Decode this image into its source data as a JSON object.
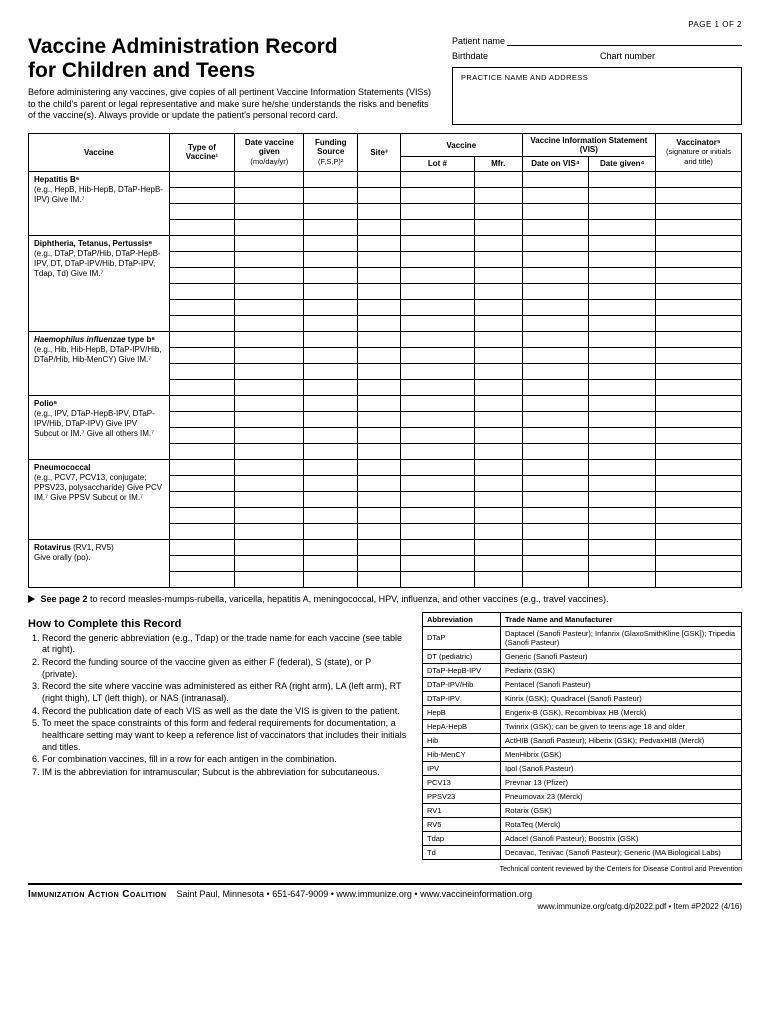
{
  "page_indicator": "PAGE 1 OF 2",
  "title_line1": "Vaccine Administration Record",
  "title_line2": "for Children and Teens",
  "intro": "Before administering any vaccines, give copies of all pertinent Vaccine Information Statements (VISs) to the child's parent or legal representative and make sure he/she understands the risks and benefits of the vaccine(s). Always provide or update the patient's personal record card.",
  "fields": {
    "patient_name": "Patient name",
    "birthdate": "Birthdate",
    "chart_number": "Chart number",
    "practice_box": "PRACTICE NAME AND ADDRESS"
  },
  "table": {
    "headers": {
      "vaccine": "Vaccine",
      "type": "Type of Vaccine¹",
      "date_given": "Date vaccine given",
      "date_given_sub": "(mo/day/yr)",
      "funding": "Funding Source",
      "funding_sub": "(F,S,P)²",
      "site": "Site³",
      "vaccine2": "Vaccine",
      "lot": "Lot #",
      "mfr": "Mfr.",
      "vis": "Vaccine Information Statement (VIS)",
      "date_vis": "Date on VIS⁴",
      "date_given2": "Date given⁴",
      "vaccinator": "Vaccinator⁵",
      "vaccinator_sub": "(signature or initials and title)"
    },
    "col_widths": {
      "vaccine": 118,
      "type": 55,
      "date": 58,
      "funding": 45,
      "site": 36,
      "lot": 62,
      "mfr": 40,
      "vis1": 56,
      "vis2": 56,
      "vacc": 72
    },
    "rows": [
      {
        "name": "Hepatitis B⁶",
        "desc": "(e.g., HepB, Hib-HepB, DTaP-HepB-IPV) Give IM.⁷",
        "blank_rows": 4
      },
      {
        "name": "Diphtheria, Tetanus, Pertussis⁶",
        "desc": "(e.g., DTaP, DTaP/Hib, DTaP-HepB-IPV, DT, DTaP-IPV/Hib, DTaP-IPV, Tdap, Td) Give IM.⁷",
        "blank_rows": 6
      },
      {
        "name_html": "Haemophilus influenzae type b⁶",
        "name_italic_part": "Haemophilus influenzae",
        "name_rest": " type b⁶",
        "desc": "(e.g., Hib, Hib-HepB, DTaP-IPV/Hib, DTaP/Hib, Hib-MenCY) Give IM.⁷",
        "blank_rows": 4
      },
      {
        "name": "Polio⁶",
        "desc": "(e.g., IPV, DTaP-HepB-IPV, DTaP-IPV/Hib, DTaP-IPV) Give IPV Subcut or IM.⁷ Give all others IM.⁷",
        "blank_rows": 4
      },
      {
        "name": "Pneumococcal",
        "desc": "(e.g., PCV7, PCV13, conjugate; PPSV23, polysaccharide) Give PCV IM.⁷ Give PPSV Subcut or IM.⁷",
        "blank_rows": 5
      },
      {
        "name": "Rotavirus",
        "name_extra": " (RV1, RV5)",
        "desc": "Give orally (po).",
        "blank_rows": 3
      }
    ]
  },
  "see_page": {
    "bold": "See page 2",
    "rest": " to record measles-mumps-rubella, varicella, hepatitis A, meningococcal, HPV, influenza, and other vaccines (e.g., travel vaccines)."
  },
  "howto_title": "How to Complete this Record",
  "howto": [
    "Record the generic abbreviation (e.g., Tdap) or the trade name for each vaccine (see table at right).",
    "Record the funding source of the vaccine given as either F (federal), S (state), or P (private).",
    "Record the site where vaccine was administered as either RA (right arm), LA (left arm), RT (right thigh), LT (left thigh), or NAS (intranasal).",
    "Record the publication date of each VIS as well as the date the VIS is given to the patient.",
    "To meet the space constraints of this form and federal requirements for documentation, a healthcare setting may want to keep a reference list of vaccinators that includes their initials and titles.",
    "For combination vaccines, fill in a row for each antigen in the combination.",
    "IM is the abbreviation for intramuscular; Subcut is the abbreviation for subcutaneous."
  ],
  "abbr_table": {
    "headers": {
      "abbr": "Abbreviation",
      "trade": "Trade Name and Manufacturer"
    },
    "rows": [
      [
        "DTaP",
        "Daptacel (Sanofi Pasteur); Infanrix (GlaxoSmithKline [GSK]); Tripedia (Sanofi Pasteur)"
      ],
      [
        "DT (pediatric)",
        "Generic (Sanofi Pasteur)"
      ],
      [
        "DTaP-HepB-IPV",
        "Pediarix (GSK)"
      ],
      [
        "DTaP-IPV/Hib",
        "Pentacel (Sanofi Pasteur)"
      ],
      [
        "DTaP-IPV",
        "Kinrix (GSK); Quadracel (Sanofi Pasteur)"
      ],
      [
        "HepB",
        "Engerix-B (GSK), Recombivax HB (Merck)"
      ],
      [
        "HepA-HepB",
        "Twinrix (GSK); can be given to teens age 18 and older"
      ],
      [
        "Hib",
        "ActHIB (Sanofi Pasteur); Hiberix (GSK); PedvaxHIB (Merck)"
      ],
      [
        "Hib-MenCY",
        "MenHibrix (GSK)"
      ],
      [
        "IPV",
        "Ipol (Sanofi Pasteur)"
      ],
      [
        "PCV13",
        "Prevnar 13 (Pfizer)"
      ],
      [
        "PPSV23",
        "Pneumovax 23 (Merck)"
      ],
      [
        "RV1",
        "Rotarix (GSK)"
      ],
      [
        "RV5",
        "RotaTeq (Merck)"
      ],
      [
        "Tdap",
        "Adacel (Sanofi Pasteur); Boostrix (GSK)"
      ],
      [
        "Td",
        "Decavac, Tenivac (Sanofi Pasteur); Generic (MA Biological Labs)"
      ]
    ]
  },
  "tech_review": "Technical content reviewed by the Centers for Disease Control and Prevention",
  "footer": {
    "coalition": "Immunization Action Coalition",
    "info": "Saint Paul, Minnesota • 651-647-9009 • www.immunize.org • www.vaccineinformation.org",
    "sub": "www.immunize.org/catg.d/p2022.pdf • Item #P2022 (4/16)"
  },
  "style": {
    "text_color": "#000000",
    "bg_color": "#ffffff",
    "border_color": "#000000"
  }
}
